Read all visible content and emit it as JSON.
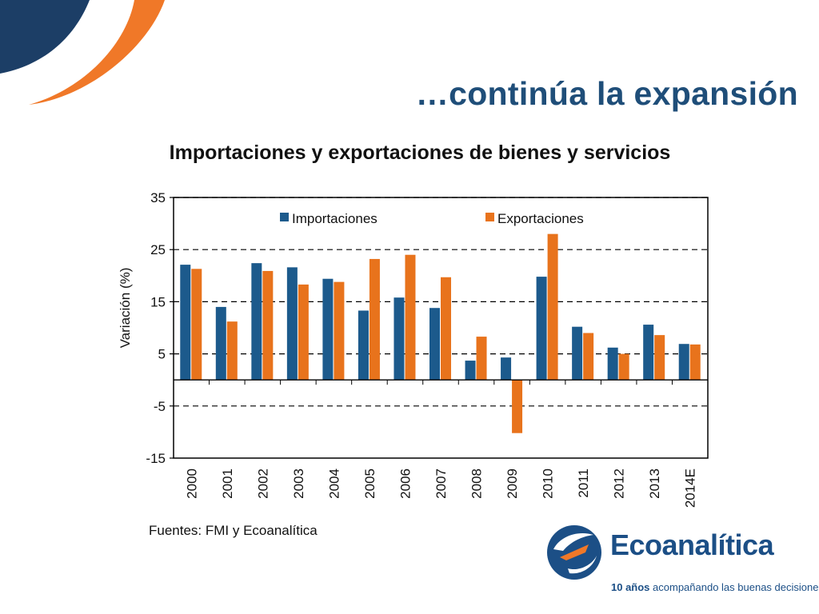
{
  "slide": {
    "title": "…continúa la expansión",
    "source": "Fuentes: FMI y Ecoanalítica"
  },
  "logo": {
    "name": "Ecoanalítica",
    "tagline_bold": "10 años",
    "tagline_rest": " acompañando las buenas decisiones"
  },
  "colors": {
    "importaciones": "#1c5a8c",
    "exportaciones": "#e8731c",
    "brand_navy": "#1c3e66",
    "brand_orange": "#f07828"
  },
  "chart_data": {
    "type": "bar",
    "title": "Importaciones y exportaciones de bienes y servicios",
    "xlabel": "",
    "ylabel": "Variación (%)",
    "ylim": [
      -15,
      35
    ],
    "yticks": [
      35,
      25,
      15,
      5,
      -5,
      -15
    ],
    "grid": true,
    "legend_position": "top",
    "categories": [
      "2000",
      "2001",
      "2002",
      "2003",
      "2004",
      "2005",
      "2006",
      "2007",
      "2008",
      "2009",
      "2010",
      "2011",
      "2012",
      "2013",
      "2014E"
    ],
    "series": [
      {
        "name": "Importaciones",
        "values": [
          22.1,
          14.0,
          22.4,
          21.6,
          19.4,
          13.3,
          15.8,
          13.8,
          3.7,
          4.3,
          19.8,
          10.2,
          6.2,
          10.6,
          6.9
        ]
      },
      {
        "name": "Exportaciones",
        "values": [
          21.3,
          11.2,
          20.9,
          18.3,
          18.8,
          23.2,
          24.0,
          19.7,
          8.3,
          -10.2,
          28.0,
          9.0,
          5.0,
          8.6,
          6.8
        ]
      }
    ]
  }
}
